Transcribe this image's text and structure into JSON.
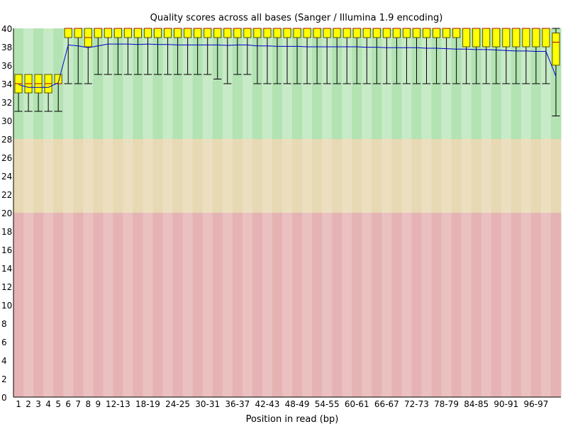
{
  "chart_data": {
    "type": "box",
    "title": "Quality scores across all bases (Sanger / Illumina 1.9 encoding)",
    "xlabel": "Position in read (bp)",
    "ylabel": "",
    "ylim": [
      0,
      40
    ],
    "y_ticks": [
      0,
      2,
      4,
      6,
      8,
      10,
      12,
      14,
      16,
      18,
      20,
      22,
      24,
      26,
      28,
      30,
      32,
      34,
      36,
      38,
      40
    ],
    "grid": false,
    "quality_bands": [
      {
        "name": "good",
        "from": 28,
        "to": 40,
        "colors": [
          "#b3e2b3",
          "#c7eac7"
        ]
      },
      {
        "name": "reasonable",
        "from": 20,
        "to": 28,
        "colors": [
          "#e6d9b3",
          "#ecdfc0"
        ]
      },
      {
        "name": "poor",
        "from": 0,
        "to": 20,
        "colors": [
          "#e5b3b3",
          "#ebc0c0"
        ]
      }
    ],
    "colors": {
      "box": "#ffff00",
      "box_stroke": "#555500",
      "mean_line": "#0000cc",
      "whisker": "#000000",
      "axis": "#000000"
    },
    "categories": [
      "1",
      "2",
      "3",
      "4",
      "5",
      "6",
      "7",
      "8",
      "9",
      "10-11",
      "12-13",
      "14-15",
      "16-17",
      "18-19",
      "20-21",
      "22-23",
      "24-25",
      "26-27",
      "28-29",
      "30-31",
      "32-33",
      "34-35",
      "36-37",
      "38-39",
      "40-41",
      "42-43",
      "44-45",
      "46-47",
      "48-49",
      "50-51",
      "52-53",
      "54-55",
      "56-57",
      "58-59",
      "60-61",
      "62-63",
      "64-65",
      "66-67",
      "68-69",
      "70-71",
      "72-73",
      "74-75",
      "76-77",
      "78-79",
      "80-81",
      "82-83",
      "84-85",
      "86-87",
      "88-89",
      "90-91",
      "92-93",
      "94-95",
      "96-97",
      "98-99",
      "100-101"
    ],
    "x_tick_labels": [
      "1",
      "2",
      "3",
      "4",
      "5",
      "6",
      "7",
      "8",
      "9",
      "12-13",
      "18-19",
      "24-25",
      "30-31",
      "36-37",
      "42-43",
      "48-49",
      "54-55",
      "60-61",
      "66-67",
      "72-73",
      "78-79",
      "84-85",
      "90-91",
      "96-97"
    ],
    "median": [
      34,
      34,
      34,
      34,
      34,
      40,
      40,
      39,
      40,
      40,
      40,
      40,
      40,
      40,
      40,
      40,
      40,
      40,
      40,
      40,
      40,
      40,
      40,
      40,
      40,
      40,
      40,
      40,
      40,
      40,
      40,
      40,
      40,
      40,
      40,
      40,
      40,
      40,
      40,
      40,
      40,
      40,
      40,
      40,
      40,
      40,
      40,
      40,
      40,
      40,
      40,
      40,
      40,
      40,
      38.5
    ],
    "q1": [
      33,
      33,
      33,
      33,
      34,
      39,
      39,
      38,
      39,
      39,
      39,
      39,
      39,
      39,
      39,
      39,
      39,
      39,
      39,
      39,
      39,
      39,
      39,
      39,
      39,
      39,
      39,
      39,
      39,
      39,
      39,
      39,
      39,
      39,
      39,
      39,
      39,
      39,
      39,
      39,
      39,
      39,
      39,
      39,
      39,
      38,
      38,
      38,
      38,
      38,
      38,
      38,
      38,
      38,
      36
    ],
    "q3": [
      35,
      35,
      35,
      35,
      35,
      40,
      40,
      40,
      40,
      40,
      40,
      40,
      40,
      40,
      40,
      40,
      40,
      40,
      40,
      40,
      40,
      40,
      40,
      40,
      40,
      40,
      40,
      40,
      40,
      40,
      40,
      40,
      40,
      40,
      40,
      40,
      40,
      40,
      40,
      40,
      40,
      40,
      40,
      40,
      40,
      40,
      40,
      40,
      40,
      40,
      40,
      40,
      40,
      40,
      39.5
    ],
    "whisker_low": [
      31,
      31,
      31,
      31,
      31,
      34,
      34,
      34,
      35,
      35,
      35,
      35,
      35,
      35,
      35,
      35,
      35,
      35,
      35,
      35,
      34.5,
      34,
      35,
      35,
      34,
      34,
      34,
      34,
      34,
      34,
      34,
      34,
      34,
      34,
      34,
      34,
      34,
      34,
      34,
      34,
      34,
      34,
      34,
      34,
      34,
      34,
      34,
      34,
      34,
      34,
      34,
      34,
      34,
      34,
      30.5
    ],
    "whisker_high": [
      35,
      35,
      35,
      35,
      35,
      40,
      40,
      40,
      40,
      40,
      40,
      40,
      40,
      40,
      40,
      40,
      40,
      40,
      40,
      40,
      40,
      40,
      40,
      40,
      40,
      40,
      40,
      40,
      40,
      40,
      40,
      40,
      40,
      40,
      40,
      40,
      40,
      40,
      40,
      40,
      40,
      40,
      40,
      40,
      40,
      40,
      40,
      40,
      40,
      40,
      40,
      40,
      40,
      40,
      40
    ],
    "mean": [
      33.9,
      33.6,
      33.6,
      33.6,
      34.1,
      38.2,
      38.1,
      37.9,
      38.1,
      38.3,
      38.3,
      38.3,
      38.25,
      38.3,
      38.25,
      38.25,
      38.2,
      38.2,
      38.2,
      38.2,
      38.2,
      38.15,
      38.2,
      38.2,
      38.1,
      38.1,
      38.05,
      38.05,
      38.05,
      38.0,
      38.0,
      38.0,
      38.0,
      38.0,
      38.0,
      37.95,
      37.95,
      37.9,
      37.9,
      37.9,
      37.9,
      37.85,
      37.85,
      37.8,
      37.75,
      37.75,
      37.7,
      37.7,
      37.65,
      37.6,
      37.55,
      37.55,
      37.5,
      37.5,
      34.8
    ]
  }
}
